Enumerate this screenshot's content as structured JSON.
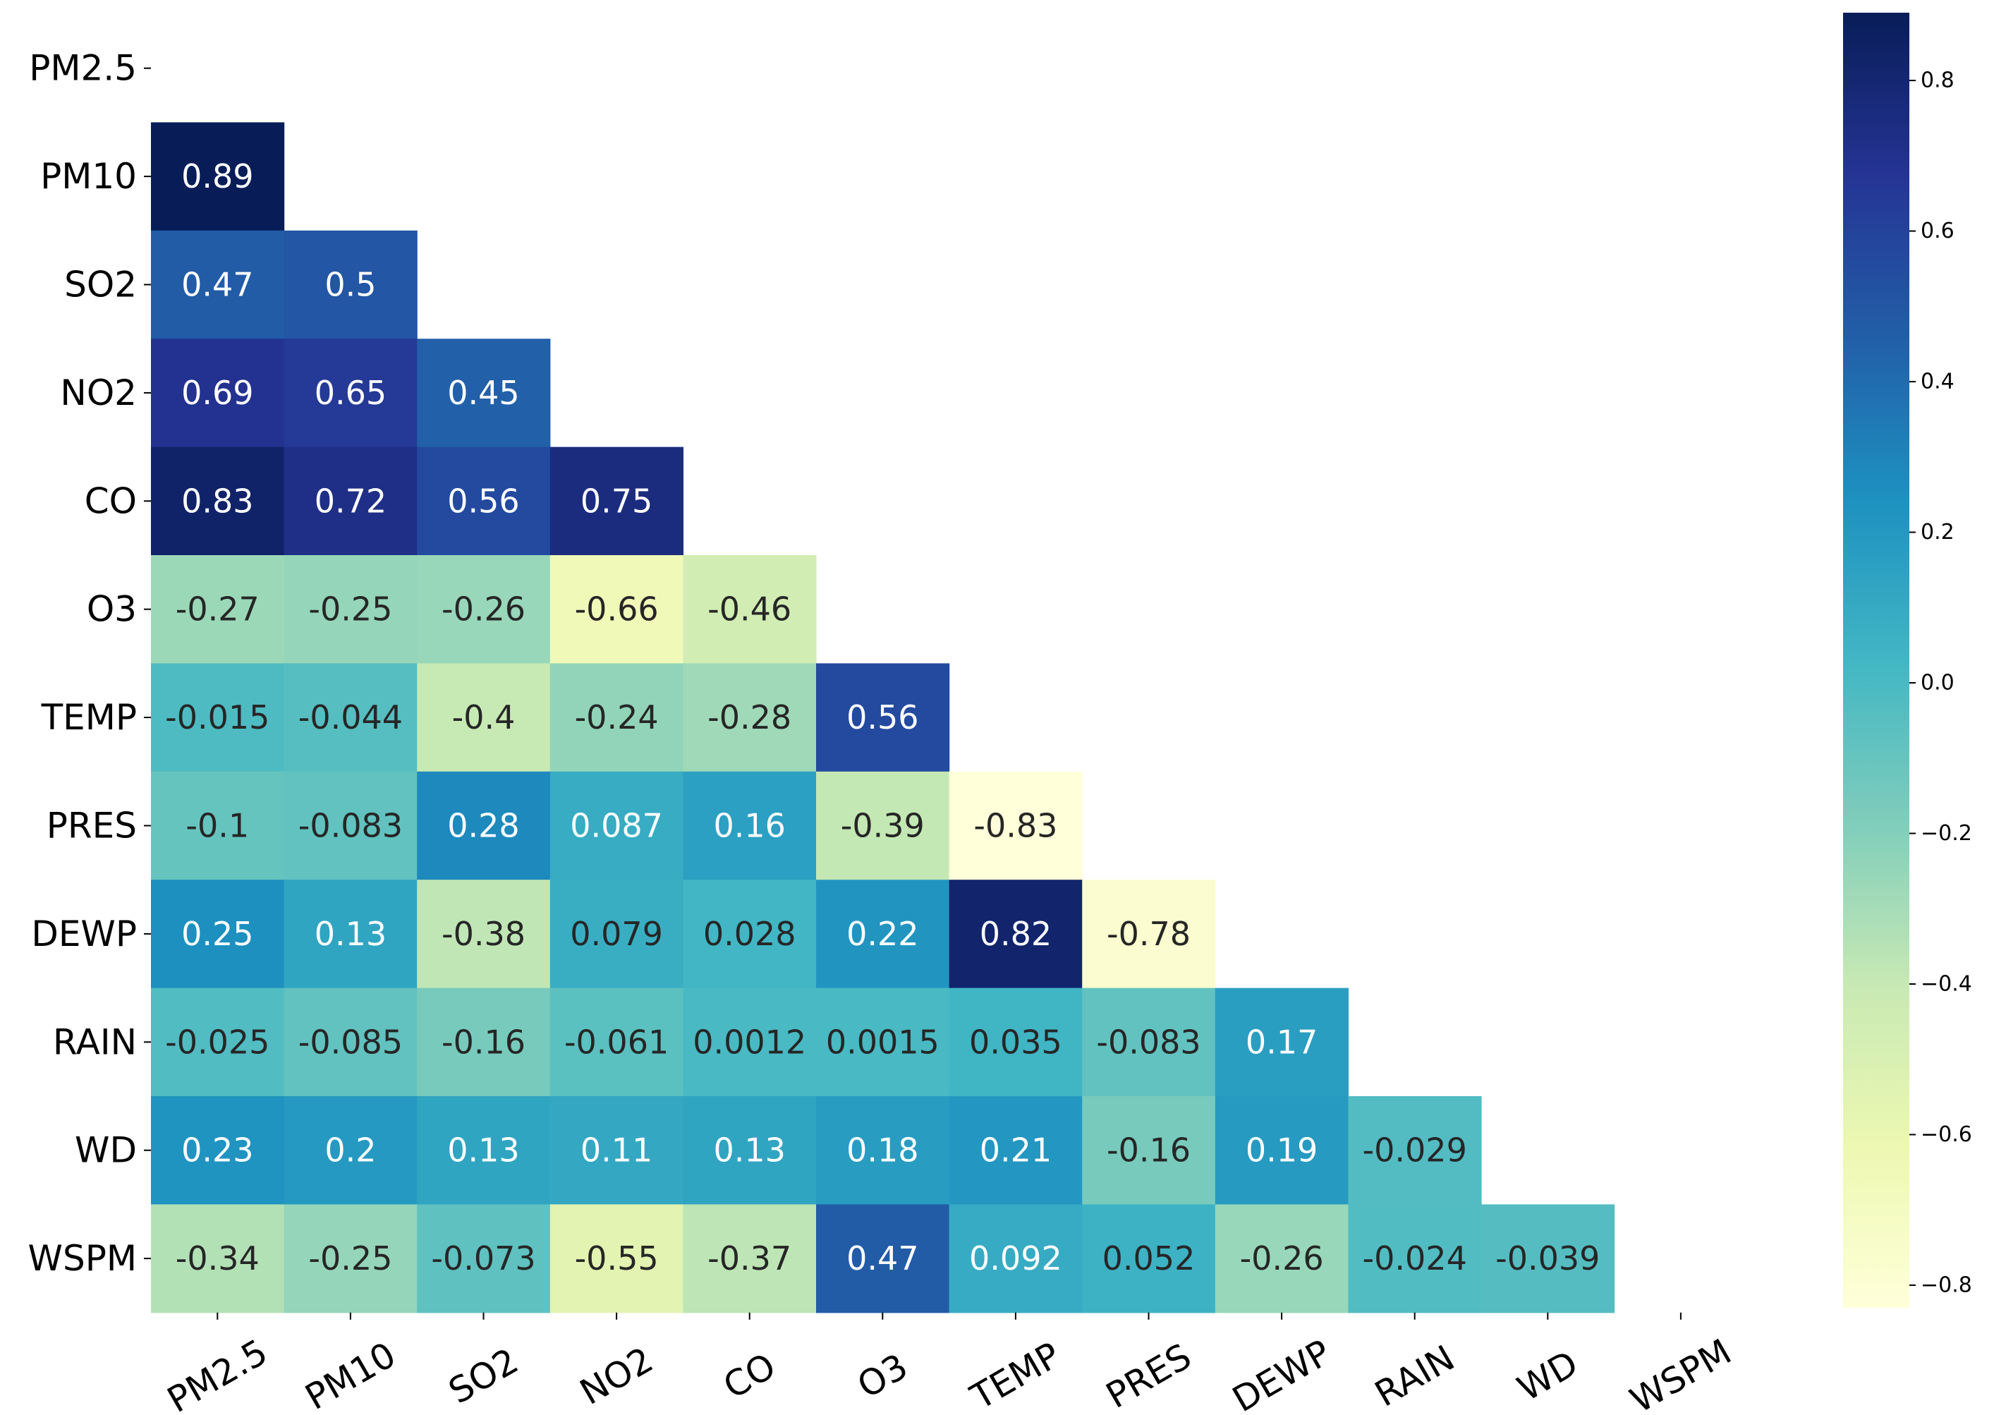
{
  "chart_data": {
    "type": "heatmap",
    "title": "",
    "xlabel": "",
    "ylabel": "",
    "labels": [
      "PM2.5",
      "PM10",
      "SO2",
      "NO2",
      "CO",
      "O3",
      "TEMP",
      "PRES",
      "DEWP",
      "RAIN",
      "WD",
      "WSPM"
    ],
    "mask": "upper-triangle including diagonal",
    "matrix": [
      [],
      [
        "0.89"
      ],
      [
        "0.47",
        "0.5"
      ],
      [
        "0.69",
        "0.65",
        "0.45"
      ],
      [
        "0.83",
        "0.72",
        "0.56",
        "0.75"
      ],
      [
        "-0.27",
        "-0.25",
        "-0.26",
        "-0.66",
        "-0.46"
      ],
      [
        "-0.015",
        "-0.044",
        "-0.4",
        "-0.24",
        "-0.28",
        "0.56"
      ],
      [
        "-0.1",
        "-0.083",
        "0.28",
        "0.087",
        "0.16",
        "-0.39",
        "-0.83"
      ],
      [
        "0.25",
        "0.13",
        "-0.38",
        "0.079",
        "0.028",
        "0.22",
        "0.82",
        "-0.78"
      ],
      [
        "-0.025",
        "-0.085",
        "-0.16",
        "-0.061",
        "0.0012",
        "0.0015",
        "0.035",
        "-0.083",
        "0.17"
      ],
      [
        "0.23",
        "0.2",
        "0.13",
        "0.11",
        "0.13",
        "0.18",
        "0.21",
        "-0.16",
        "0.19",
        "-0.029"
      ],
      [
        "-0.34",
        "-0.25",
        "-0.073",
        "-0.55",
        "-0.37",
        "0.47",
        "0.092",
        "0.052",
        "-0.26",
        "-0.024",
        "-0.039"
      ]
    ],
    "colormap": "YlGnBu",
    "vmin": -0.83,
    "vmax": 0.89,
    "colorbar": {
      "ticks": [
        0.8,
        0.6,
        0.4,
        0.2,
        0.0,
        -0.2,
        -0.4,
        -0.6,
        -0.8
      ],
      "tick_labels": [
        "0.8",
        "0.6",
        "0.4",
        "0.2",
        "0.0",
        "−0.2",
        "−0.4",
        "−0.6",
        "−0.8"
      ]
    },
    "colors": {
      "low": "#ffffd9",
      "high": "#081d58",
      "text_dark": "#262626",
      "text_light": "#ffffff"
    }
  }
}
